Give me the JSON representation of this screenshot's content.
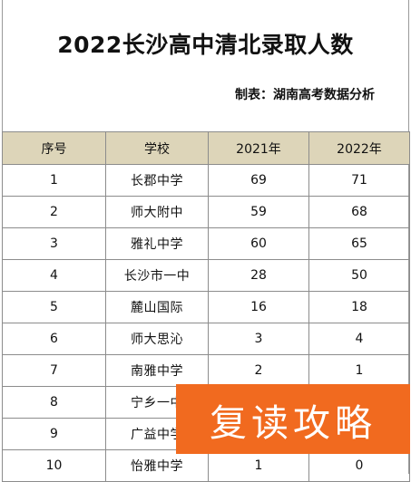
{
  "title": "2022长沙高中清北录取人数",
  "maker": "制表：湖南高考数据分析",
  "table": {
    "headers": [
      "序号",
      "学校",
      "2021年",
      "2022年"
    ],
    "rows": [
      [
        "1",
        "长郡中学",
        "69",
        "71"
      ],
      [
        "2",
        "师大附中",
        "59",
        "68"
      ],
      [
        "3",
        "雅礼中学",
        "60",
        "65"
      ],
      [
        "4",
        "长沙市一中",
        "28",
        "50"
      ],
      [
        "5",
        "麓山国际",
        "16",
        "18"
      ],
      [
        "6",
        "师大思沁",
        "3",
        "4"
      ],
      [
        "7",
        "南雅中学",
        "2",
        "1"
      ],
      [
        "8",
        "宁乡一中",
        "",
        ""
      ],
      [
        "9",
        "广益中学",
        "",
        ""
      ],
      [
        "10",
        "怡雅中学",
        "1",
        "0"
      ]
    ]
  },
  "overlay_text": "复读攻略",
  "colors": {
    "header_bg": "#ddd5b9",
    "overlay_bg": "#f16a1f",
    "overlay_text": "#ffffff"
  }
}
